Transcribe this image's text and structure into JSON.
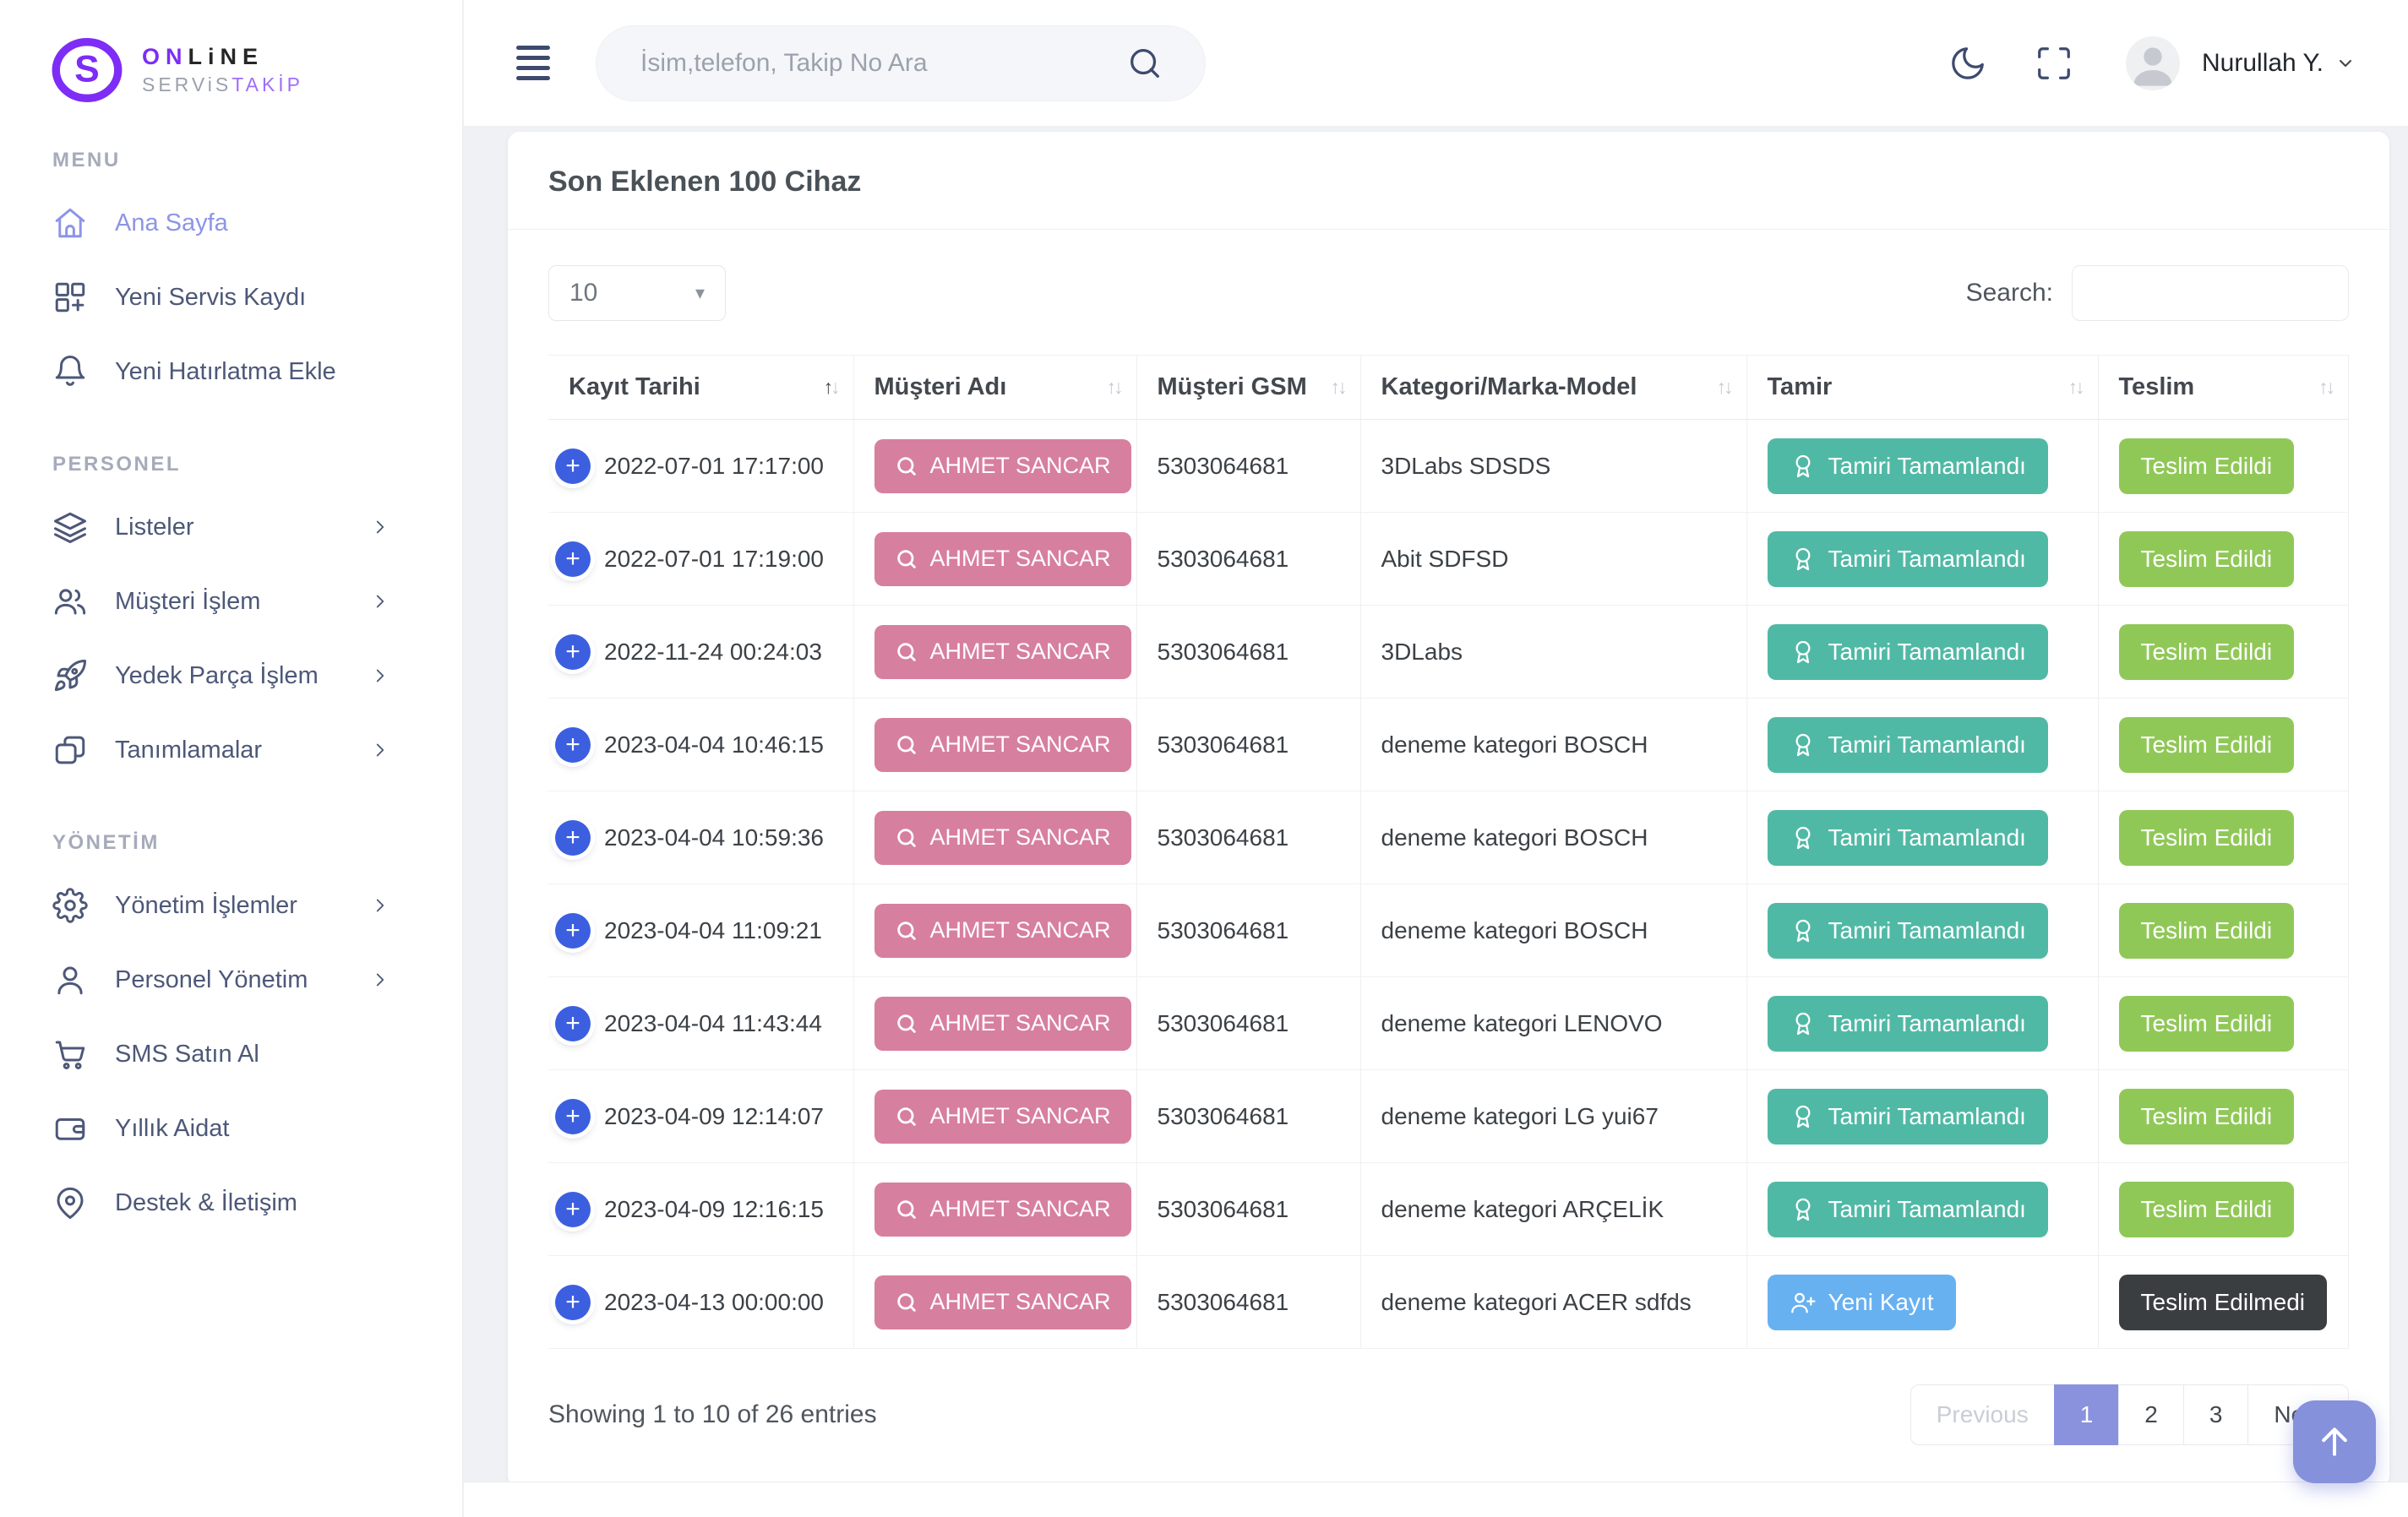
{
  "brand": {
    "name_top_accent": "ON",
    "name_top_rest": "LiNE",
    "name_bottom_gray": "SERViS",
    "name_bottom_accent": "TAKİP"
  },
  "topbar": {
    "search_placeholder": "İsim,telefon, Takip No Ara",
    "user_name": "Nurullah Y."
  },
  "sidebar": {
    "sections": [
      {
        "label": "MENU",
        "items": [
          {
            "icon": "home-icon",
            "label": "Ana Sayfa",
            "active": true,
            "chevron": false
          },
          {
            "icon": "grid-plus-icon",
            "label": "Yeni Servis Kaydı",
            "active": false,
            "chevron": false
          },
          {
            "icon": "bell-icon",
            "label": "Yeni Hatırlatma Ekle",
            "active": false,
            "chevron": false
          }
        ]
      },
      {
        "label": "PERSONEL",
        "items": [
          {
            "icon": "layers-icon",
            "label": "Listeler",
            "active": false,
            "chevron": true
          },
          {
            "icon": "users-icon",
            "label": "Müşteri İşlem",
            "active": false,
            "chevron": true
          },
          {
            "icon": "rocket-icon",
            "label": "Yedek Parça İşlem",
            "active": false,
            "chevron": true
          },
          {
            "icon": "cards-icon",
            "label": "Tanımlamalar",
            "active": false,
            "chevron": true
          }
        ]
      },
      {
        "label": "YÖNETİM",
        "items": [
          {
            "icon": "gear-icon",
            "label": "Yönetim İşlemler",
            "active": false,
            "chevron": true
          },
          {
            "icon": "user-icon",
            "label": "Personel Yönetim",
            "active": false,
            "chevron": true
          },
          {
            "icon": "cart-icon",
            "label": "SMS Satın Al",
            "active": false,
            "chevron": false
          },
          {
            "icon": "wallet-icon",
            "label": "Yıllık Aidat",
            "active": false,
            "chevron": false
          },
          {
            "icon": "pin-icon",
            "label": "Destek & İletişim",
            "active": false,
            "chevron": false
          }
        ]
      }
    ]
  },
  "page": {
    "title": "Son Eklenen 100 Cihaz",
    "length_value": "10",
    "search_label": "Search:",
    "info": "Showing 1 to 10 of 26 entries"
  },
  "table": {
    "headers": [
      {
        "label": "Kayıt Tarihi",
        "sorted": "asc"
      },
      {
        "label": "Müşteri Adı",
        "sorted": null
      },
      {
        "label": "Müşteri GSM",
        "sorted": null
      },
      {
        "label": "Kategori/Marka-Model",
        "sorted": null
      },
      {
        "label": "Tamir",
        "sorted": null
      },
      {
        "label": "Teslim",
        "sorted": null
      }
    ],
    "rows": [
      {
        "date": "2022-07-01 17:17:00",
        "customer": "AHMET SANCAR",
        "gsm": "5303064681",
        "category": "3DLabs SDSDS",
        "tamir": {
          "label": "Tamiri Tamamlandı",
          "type": "done",
          "icon": "award-icon"
        },
        "teslim": {
          "label": "Teslim Edildi",
          "type": "delivered"
        }
      },
      {
        "date": "2022-07-01 17:19:00",
        "customer": "AHMET SANCAR",
        "gsm": "5303064681",
        "category": "Abit SDFSD",
        "tamir": {
          "label": "Tamiri Tamamlandı",
          "type": "done",
          "icon": "award-icon"
        },
        "teslim": {
          "label": "Teslim Edildi",
          "type": "delivered"
        }
      },
      {
        "date": "2022-11-24 00:24:03",
        "customer": "AHMET SANCAR",
        "gsm": "5303064681",
        "category": "3DLabs",
        "tamir": {
          "label": "Tamiri Tamamlandı",
          "type": "done",
          "icon": "award-icon"
        },
        "teslim": {
          "label": "Teslim Edildi",
          "type": "delivered"
        }
      },
      {
        "date": "2023-04-04 10:46:15",
        "customer": "AHMET SANCAR",
        "gsm": "5303064681",
        "category": "deneme kategori BOSCH",
        "tamir": {
          "label": "Tamiri Tamamlandı",
          "type": "done",
          "icon": "award-icon"
        },
        "teslim": {
          "label": "Teslim Edildi",
          "type": "delivered"
        }
      },
      {
        "date": "2023-04-04 10:59:36",
        "customer": "AHMET SANCAR",
        "gsm": "5303064681",
        "category": "deneme kategori BOSCH",
        "tamir": {
          "label": "Tamiri Tamamlandı",
          "type": "done",
          "icon": "award-icon"
        },
        "teslim": {
          "label": "Teslim Edildi",
          "type": "delivered"
        }
      },
      {
        "date": "2023-04-04 11:09:21",
        "customer": "AHMET SANCAR",
        "gsm": "5303064681",
        "category": "deneme kategori BOSCH",
        "tamir": {
          "label": "Tamiri Tamamlandı",
          "type": "done",
          "icon": "award-icon"
        },
        "teslim": {
          "label": "Teslim Edildi",
          "type": "delivered"
        }
      },
      {
        "date": "2023-04-04 11:43:44",
        "customer": "AHMET SANCAR",
        "gsm": "5303064681",
        "category": "deneme kategori LENOVO",
        "tamir": {
          "label": "Tamiri Tamamlandı",
          "type": "done",
          "icon": "award-icon"
        },
        "teslim": {
          "label": "Teslim Edildi",
          "type": "delivered"
        }
      },
      {
        "date": "2023-04-09 12:14:07",
        "customer": "AHMET SANCAR",
        "gsm": "5303064681",
        "category": "deneme kategori LG yui67",
        "tamir": {
          "label": "Tamiri Tamamlandı",
          "type": "done",
          "icon": "award-icon"
        },
        "teslim": {
          "label": "Teslim Edildi",
          "type": "delivered"
        }
      },
      {
        "date": "2023-04-09 12:16:15",
        "customer": "AHMET SANCAR",
        "gsm": "5303064681",
        "category": "deneme kategori ARÇELİK",
        "tamir": {
          "label": "Tamiri Tamamlandı",
          "type": "done",
          "icon": "award-icon"
        },
        "teslim": {
          "label": "Teslim Edildi",
          "type": "delivered"
        }
      },
      {
        "date": "2023-04-13 00:00:00",
        "customer": "AHMET SANCAR",
        "gsm": "5303064681",
        "category": "deneme kategori ACER sdfds",
        "tamir": {
          "label": "Yeni Kayıt",
          "type": "new",
          "icon": "user-plus-icon"
        },
        "teslim": {
          "label": "Teslim Edilmedi",
          "type": "not_delivered"
        }
      }
    ]
  },
  "pagination": [
    {
      "label": "Previous",
      "state": "disabled"
    },
    {
      "label": "1",
      "state": "active"
    },
    {
      "label": "2",
      "state": "normal"
    },
    {
      "label": "3",
      "state": "normal"
    },
    {
      "label": "Next",
      "state": "normal"
    }
  ],
  "colors": {
    "brand_purple": "#7d2df5",
    "brand_purple_light": "#a06df8",
    "sidebar_active": "#8d95e6",
    "accent_indigo": "#8a92de",
    "scrolltop_indigo": "#8691dc",
    "row_expand_blue": "#3c5fe0",
    "customer_pink": "#d77f9f",
    "status": {
      "done": "#50b9a5",
      "new": "#68b1f1",
      "delivered": "#90c857",
      "not_delivered": "#3a3e41"
    }
  }
}
